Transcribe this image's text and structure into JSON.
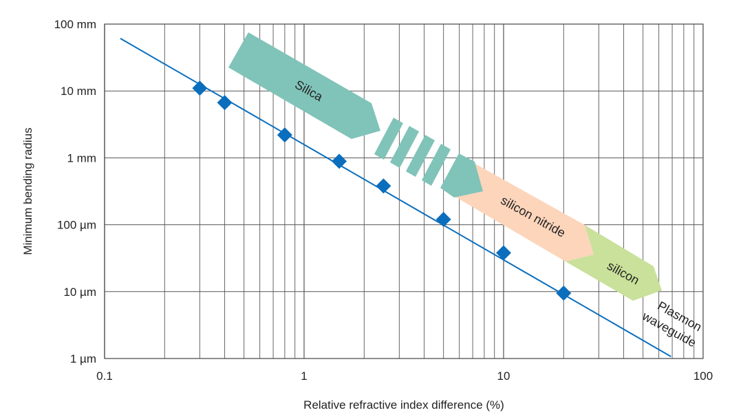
{
  "chart_data": {
    "type": "scatter",
    "xlabel": "Relative refractive index difference (%)",
    "ylabel": "Minimum bending radius",
    "x_scale": "log",
    "y_scale": "log",
    "xlim": [
      0.1,
      100
    ],
    "ylim_mm": [
      0.001,
      100
    ],
    "x_tick_labels": [
      "0.1",
      "1",
      "10",
      "100"
    ],
    "y_tick_labels": [
      "1 µm",
      "10 µm",
      "100 µm",
      "1 mm",
      "10 mm",
      "100 mm"
    ],
    "grid": true,
    "points": {
      "x": [
        0.3,
        0.4,
        0.8,
        1.5,
        2.5,
        5,
        10,
        20
      ],
      "y_mm": [
        11,
        6.7,
        2.2,
        0.89,
        0.38,
        0.12,
        0.038,
        0.0095
      ],
      "marker": "diamond",
      "color": "#0a6ebd"
    },
    "fit_line": {
      "x": [
        0.12,
        69
      ],
      "y_mm": [
        61,
        0.00107
      ],
      "color": "#0a6ebd"
    },
    "annotations": [
      {
        "text": "Silica",
        "color": "#80c3b9"
      },
      {
        "text": "silicon nitride",
        "color": "#fcd5bb"
      },
      {
        "text": "silicon",
        "color": "#c9e19a"
      },
      {
        "text": "Plasmon",
        "color": ""
      },
      {
        "text": "waveguide",
        "color": ""
      }
    ]
  }
}
